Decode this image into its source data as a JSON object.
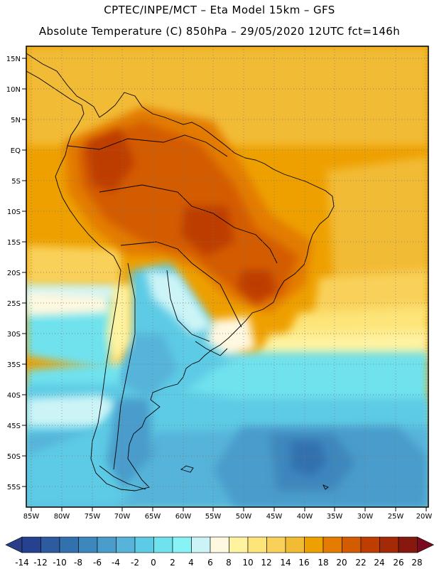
{
  "header": {
    "line1": "CPTEC/INPE/MCT –   Eta Model 15km – GFS",
    "line2": "Absolute Temperature (C) 850hPa – 29/05/2020 12UTC fct=146h"
  },
  "map": {
    "lat_labels": [
      "15N",
      "10N",
      "5N",
      "EQ",
      "5S",
      "10S",
      "15S",
      "20S",
      "25S",
      "30S",
      "35S",
      "40S",
      "45S",
      "50S",
      "55S"
    ],
    "lon_labels": [
      "85W",
      "80W",
      "75W",
      "70W",
      "65W",
      "60W",
      "55W",
      "50W",
      "45W",
      "40W",
      "35W",
      "30W",
      "25W",
      "20W"
    ]
  },
  "colorbar": {
    "labels": [
      "-14",
      "-12",
      "-10",
      "-8",
      "-6",
      "-4",
      "-2",
      "0",
      "2",
      "4",
      "6",
      "8",
      "10",
      "12",
      "14",
      "16",
      "18",
      "20",
      "22",
      "24",
      "26",
      "28"
    ],
    "colors": [
      "#26418f",
      "#2e5a9f",
      "#3371ae",
      "#3e87bd",
      "#4a9ccb",
      "#57b3d9",
      "#5dcbe5",
      "#6fe2ee",
      "#88f3f5",
      "#ccf4f7",
      "#fff8e0",
      "#fff3a0",
      "#fde57a",
      "#f9d15a",
      "#f2bb34",
      "#eea000",
      "#e37c00",
      "#d45c00",
      "#bd3e00",
      "#a32a06",
      "#86180e"
    ],
    "under_color": "#2a3e8a",
    "over_color": "#7a0a1e"
  }
}
